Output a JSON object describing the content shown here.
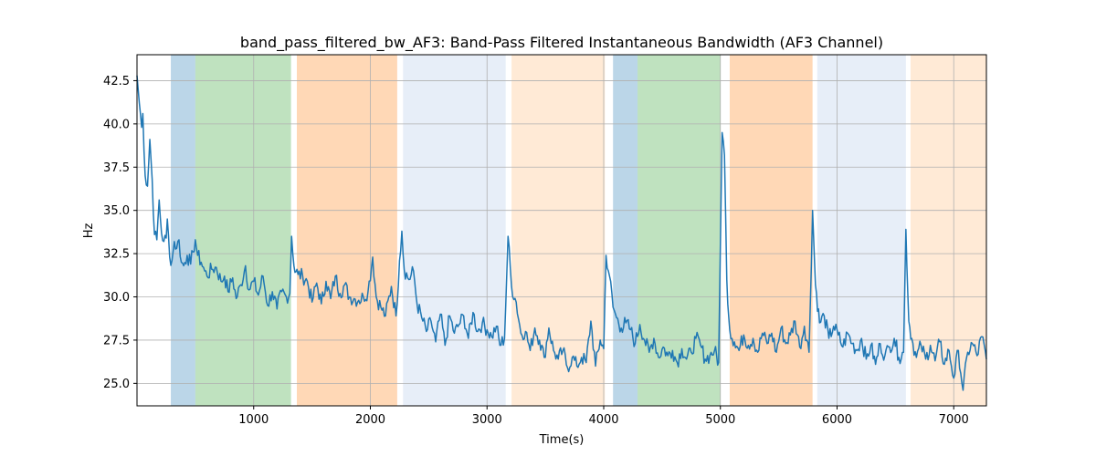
{
  "chart_data": {
    "type": "line",
    "title": "band_pass_filtered_bw_AF3: Band-Pass Filtered Instantaneous Bandwidth (AF3 Channel)",
    "xlabel": "Time(s)",
    "ylabel": "Hz",
    "xlim": [
      0,
      7280
    ],
    "ylim": [
      23.7,
      44.0
    ],
    "x_ticks": [
      1000,
      2000,
      3000,
      4000,
      5000,
      6000,
      7000
    ],
    "y_ticks": [
      25.0,
      27.5,
      30.0,
      32.5,
      35.0,
      37.5,
      40.0,
      42.5
    ],
    "x_tick_labels": [
      "1000",
      "2000",
      "3000",
      "4000",
      "5000",
      "6000",
      "7000"
    ],
    "y_tick_labels": [
      "25.0",
      "27.5",
      "30.0",
      "32.5",
      "35.0",
      "37.5",
      "40.0",
      "42.5"
    ],
    "grid": true,
    "line_color": "#1f77b4",
    "bands": [
      {
        "start": 290,
        "end": 500,
        "color": "#1f77b4",
        "alpha": 0.3
      },
      {
        "start": 500,
        "end": 1320,
        "color": "#2ca02c",
        "alpha": 0.3
      },
      {
        "start": 1370,
        "end": 2230,
        "color": "#ff7f0e",
        "alpha": 0.3
      },
      {
        "start": 2280,
        "end": 3160,
        "color": "#aec7e8",
        "alpha": 0.3
      },
      {
        "start": 3210,
        "end": 4010,
        "color": "#ffbb78",
        "alpha": 0.3
      },
      {
        "start": 4080,
        "end": 4290,
        "color": "#1f77b4",
        "alpha": 0.3
      },
      {
        "start": 4290,
        "end": 5000,
        "color": "#2ca02c",
        "alpha": 0.3
      },
      {
        "start": 5080,
        "end": 5790,
        "color": "#ff7f0e",
        "alpha": 0.3
      },
      {
        "start": 5830,
        "end": 6590,
        "color": "#aec7e8",
        "alpha": 0.3
      },
      {
        "start": 6630,
        "end": 7280,
        "color": "#ffbb78",
        "alpha": 0.3
      }
    ],
    "anchors": [
      [
        0,
        42.8
      ],
      [
        20,
        41.2
      ],
      [
        40,
        39.8
      ],
      [
        50,
        40.6
      ],
      [
        70,
        37.0
      ],
      [
        90,
        36.4
      ],
      [
        110,
        39.1
      ],
      [
        130,
        36.8
      ],
      [
        150,
        33.6
      ],
      [
        170,
        33.3
      ],
      [
        190,
        35.6
      ],
      [
        210,
        33.7
      ],
      [
        230,
        33.2
      ],
      [
        250,
        33.4
      ],
      [
        260,
        34.5
      ],
      [
        280,
        32.3
      ],
      [
        300,
        32.1
      ],
      [
        320,
        33.2
      ],
      [
        340,
        32.8
      ],
      [
        360,
        33.3
      ],
      [
        380,
        32.0
      ],
      [
        400,
        31.8
      ],
      [
        430,
        32.4
      ],
      [
        460,
        31.9
      ],
      [
        480,
        32.6
      ],
      [
        500,
        33.3
      ],
      [
        520,
        32.4
      ],
      [
        550,
        32.0
      ],
      [
        580,
        31.5
      ],
      [
        600,
        31.2
      ],
      [
        640,
        31.6
      ],
      [
        680,
        31.7
      ],
      [
        720,
        30.9
      ],
      [
        750,
        31.2
      ],
      [
        780,
        30.3
      ],
      [
        820,
        31.1
      ],
      [
        850,
        29.9
      ],
      [
        890,
        30.7
      ],
      [
        930,
        31.8
      ],
      [
        960,
        30.4
      ],
      [
        1000,
        30.9
      ],
      [
        1040,
        30.1
      ],
      [
        1080,
        31.2
      ],
      [
        1120,
        29.5
      ],
      [
        1160,
        30.3
      ],
      [
        1200,
        29.3
      ],
      [
        1240,
        30.3
      ],
      [
        1280,
        30.0
      ],
      [
        1310,
        30.2
      ],
      [
        1325,
        33.5
      ],
      [
        1345,
        31.8
      ],
      [
        1380,
        31.3
      ],
      [
        1420,
        31.2
      ],
      [
        1460,
        30.9
      ],
      [
        1500,
        29.7
      ],
      [
        1540,
        30.8
      ],
      [
        1580,
        29.6
      ],
      [
        1620,
        30.9
      ],
      [
        1660,
        29.9
      ],
      [
        1700,
        31.2
      ],
      [
        1740,
        30.2
      ],
      [
        1780,
        30.7
      ],
      [
        1820,
        30.0
      ],
      [
        1860,
        29.9
      ],
      [
        1900,
        29.8
      ],
      [
        1940,
        30.0
      ],
      [
        1980,
        30.3
      ],
      [
        2020,
        32.3
      ],
      [
        2050,
        30.0
      ],
      [
        2090,
        29.4
      ],
      [
        2130,
        28.9
      ],
      [
        2180,
        30.6
      ],
      [
        2220,
        28.9
      ],
      [
        2250,
        32.1
      ],
      [
        2270,
        33.8
      ],
      [
        2290,
        31.6
      ],
      [
        2330,
        31.0
      ],
      [
        2370,
        31.5
      ],
      [
        2400,
        29.6
      ],
      [
        2440,
        28.8
      ],
      [
        2480,
        28.0
      ],
      [
        2520,
        28.6
      ],
      [
        2560,
        27.4
      ],
      [
        2600,
        29.0
      ],
      [
        2640,
        27.2
      ],
      [
        2680,
        28.9
      ],
      [
        2720,
        27.9
      ],
      [
        2760,
        28.4
      ],
      [
        2800,
        28.9
      ],
      [
        2840,
        27.6
      ],
      [
        2880,
        29.1
      ],
      [
        2920,
        28.0
      ],
      [
        2960,
        28.5
      ],
      [
        3000,
        28.1
      ],
      [
        3040,
        27.7
      ],
      [
        3080,
        28.3
      ],
      [
        3110,
        27.2
      ],
      [
        3150,
        27.6
      ],
      [
        3180,
        33.5
      ],
      [
        3210,
        30.6
      ],
      [
        3250,
        29.7
      ],
      [
        3290,
        27.9
      ],
      [
        3330,
        28.0
      ],
      [
        3370,
        26.9
      ],
      [
        3410,
        28.2
      ],
      [
        3450,
        27.5
      ],
      [
        3490,
        26.5
      ],
      [
        3530,
        28.2
      ],
      [
        3570,
        26.9
      ],
      [
        3610,
        26.4
      ],
      [
        3650,
        26.9
      ],
      [
        3690,
        25.9
      ],
      [
        3730,
        26.5
      ],
      [
        3770,
        26.0
      ],
      [
        3810,
        26.5
      ],
      [
        3850,
        26.2
      ],
      [
        3890,
        28.6
      ],
      [
        3930,
        26.0
      ],
      [
        3970,
        27.5
      ],
      [
        4000,
        27.0
      ],
      [
        4020,
        32.4
      ],
      [
        4050,
        31.2
      ],
      [
        4080,
        29.4
      ],
      [
        4110,
        28.8
      ],
      [
        4150,
        28.2
      ],
      [
        4190,
        28.5
      ],
      [
        4230,
        28.1
      ],
      [
        4270,
        27.3
      ],
      [
        4310,
        28.4
      ],
      [
        4350,
        27.5
      ],
      [
        4390,
        26.8
      ],
      [
        4430,
        27.6
      ],
      [
        4470,
        26.5
      ],
      [
        4510,
        27.1
      ],
      [
        4550,
        26.6
      ],
      [
        4590,
        26.9
      ],
      [
        4630,
        26.2
      ],
      [
        4670,
        27.0
      ],
      [
        4710,
        26.4
      ],
      [
        4750,
        26.8
      ],
      [
        4790,
        27.6
      ],
      [
        4830,
        27.2
      ],
      [
        4870,
        26.4
      ],
      [
        4910,
        26.6
      ],
      [
        4950,
        26.9
      ],
      [
        4985,
        26.2
      ],
      [
        5000,
        33.0
      ],
      [
        5015,
        39.5
      ],
      [
        5035,
        38.2
      ],
      [
        5055,
        31.0
      ],
      [
        5080,
        28.1
      ],
      [
        5120,
        27.4
      ],
      [
        5160,
        26.9
      ],
      [
        5200,
        27.8
      ],
      [
        5240,
        27.2
      ],
      [
        5280,
        27.6
      ],
      [
        5320,
        26.8
      ],
      [
        5360,
        27.9
      ],
      [
        5400,
        27.3
      ],
      [
        5440,
        27.9
      ],
      [
        5480,
        26.8
      ],
      [
        5520,
        28.2
      ],
      [
        5560,
        27.3
      ],
      [
        5600,
        27.8
      ],
      [
        5640,
        28.6
      ],
      [
        5680,
        27.1
      ],
      [
        5720,
        28.3
      ],
      [
        5760,
        26.8
      ],
      [
        5790,
        35.0
      ],
      [
        5815,
        30.7
      ],
      [
        5850,
        28.5
      ],
      [
        5890,
        28.9
      ],
      [
        5930,
        27.6
      ],
      [
        5970,
        28.3
      ],
      [
        6010,
        27.8
      ],
      [
        6050,
        27.1
      ],
      [
        6090,
        27.9
      ],
      [
        6130,
        27.3
      ],
      [
        6170,
        26.9
      ],
      [
        6210,
        27.6
      ],
      [
        6250,
        26.4
      ],
      [
        6290,
        27.2
      ],
      [
        6330,
        26.1
      ],
      [
        6370,
        27.3
      ],
      [
        6410,
        26.6
      ],
      [
        6450,
        27.1
      ],
      [
        6490,
        27.6
      ],
      [
        6530,
        26.5
      ],
      [
        6570,
        26.8
      ],
      [
        6590,
        33.9
      ],
      [
        6615,
        28.6
      ],
      [
        6640,
        27.6
      ],
      [
        6680,
        26.5
      ],
      [
        6720,
        27.2
      ],
      [
        6760,
        26.4
      ],
      [
        6800,
        27.2
      ],
      [
        6840,
        26.3
      ],
      [
        6880,
        27.4
      ],
      [
        6920,
        26.1
      ],
      [
        6960,
        26.9
      ],
      [
        7000,
        25.3
      ],
      [
        7040,
        26.9
      ],
      [
        7080,
        24.6
      ],
      [
        7120,
        26.8
      ],
      [
        7160,
        27.3
      ],
      [
        7200,
        26.6
      ],
      [
        7240,
        27.7
      ],
      [
        7280,
        26.4
      ]
    ]
  }
}
